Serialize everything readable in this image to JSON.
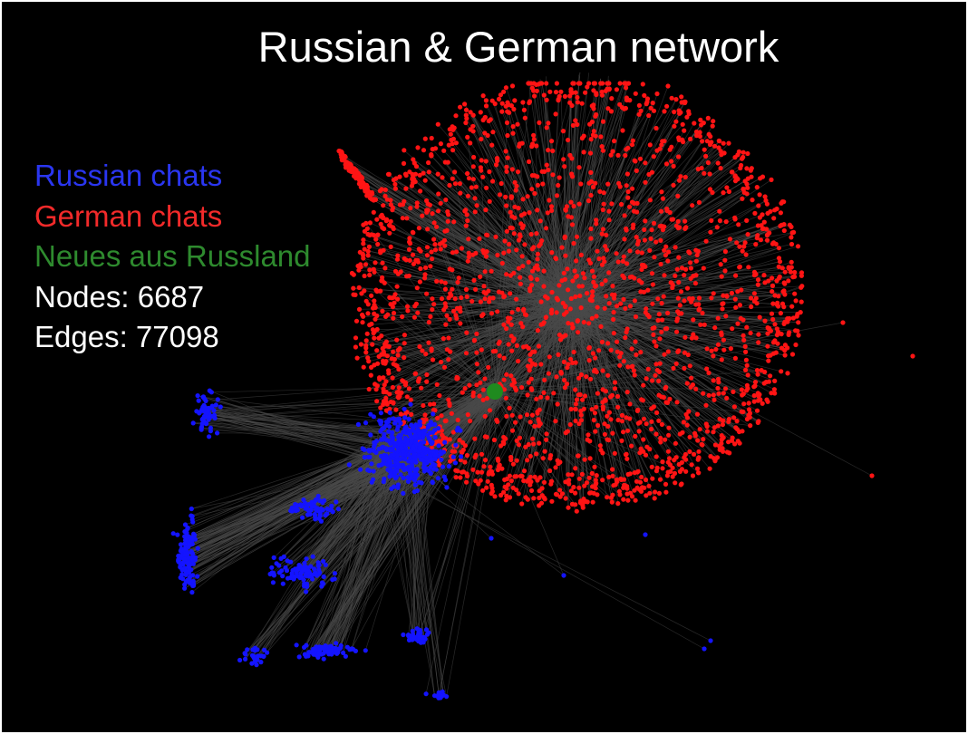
{
  "title": "Russian & German network",
  "legend": {
    "russian": "Russian chats",
    "german": "German chats",
    "highlight": "Neues aus Russland",
    "nodes": "Nodes: 6687",
    "edges": "Edges: 77098"
  },
  "colors": {
    "background": "#000000",
    "russian": "#2a36f0",
    "german": "#f22a2a",
    "highlight": "#2e8a2e",
    "text": "#ffffff",
    "edge": "#4a4a4a",
    "russian_node": "#1414ff",
    "german_node": "#ff1414",
    "highlight_node": "#1f8a1f"
  }
}
